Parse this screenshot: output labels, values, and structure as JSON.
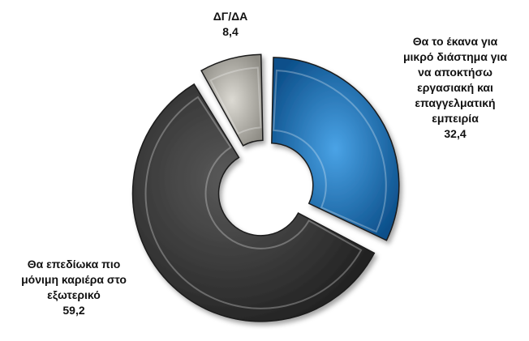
{
  "chart_data": {
    "type": "pie",
    "title": "",
    "slices": [
      {
        "label_lines": [
          "Θα το έκανα για",
          "μικρό διάστημα για",
          "να αποκτήσω",
          "εργασιακή και",
          "επαγγελματική",
          "εμπειρία"
        ],
        "value": 32.4,
        "value_text": "32,4",
        "color": "#1a6fb5"
      },
      {
        "label_lines": [
          "Θα επεδίωκα πιο",
          "μόνιμη καριέρα στο",
          "εξωτερικό"
        ],
        "value": 59.2,
        "value_text": "59,2",
        "color": "#3a3a3a"
      },
      {
        "label_lines": [
          "ΔΓ/ΔΑ"
        ],
        "value": 8.4,
        "value_text": "8,4",
        "color": "#b5b3ac"
      }
    ],
    "donut": true,
    "exploded": true
  }
}
